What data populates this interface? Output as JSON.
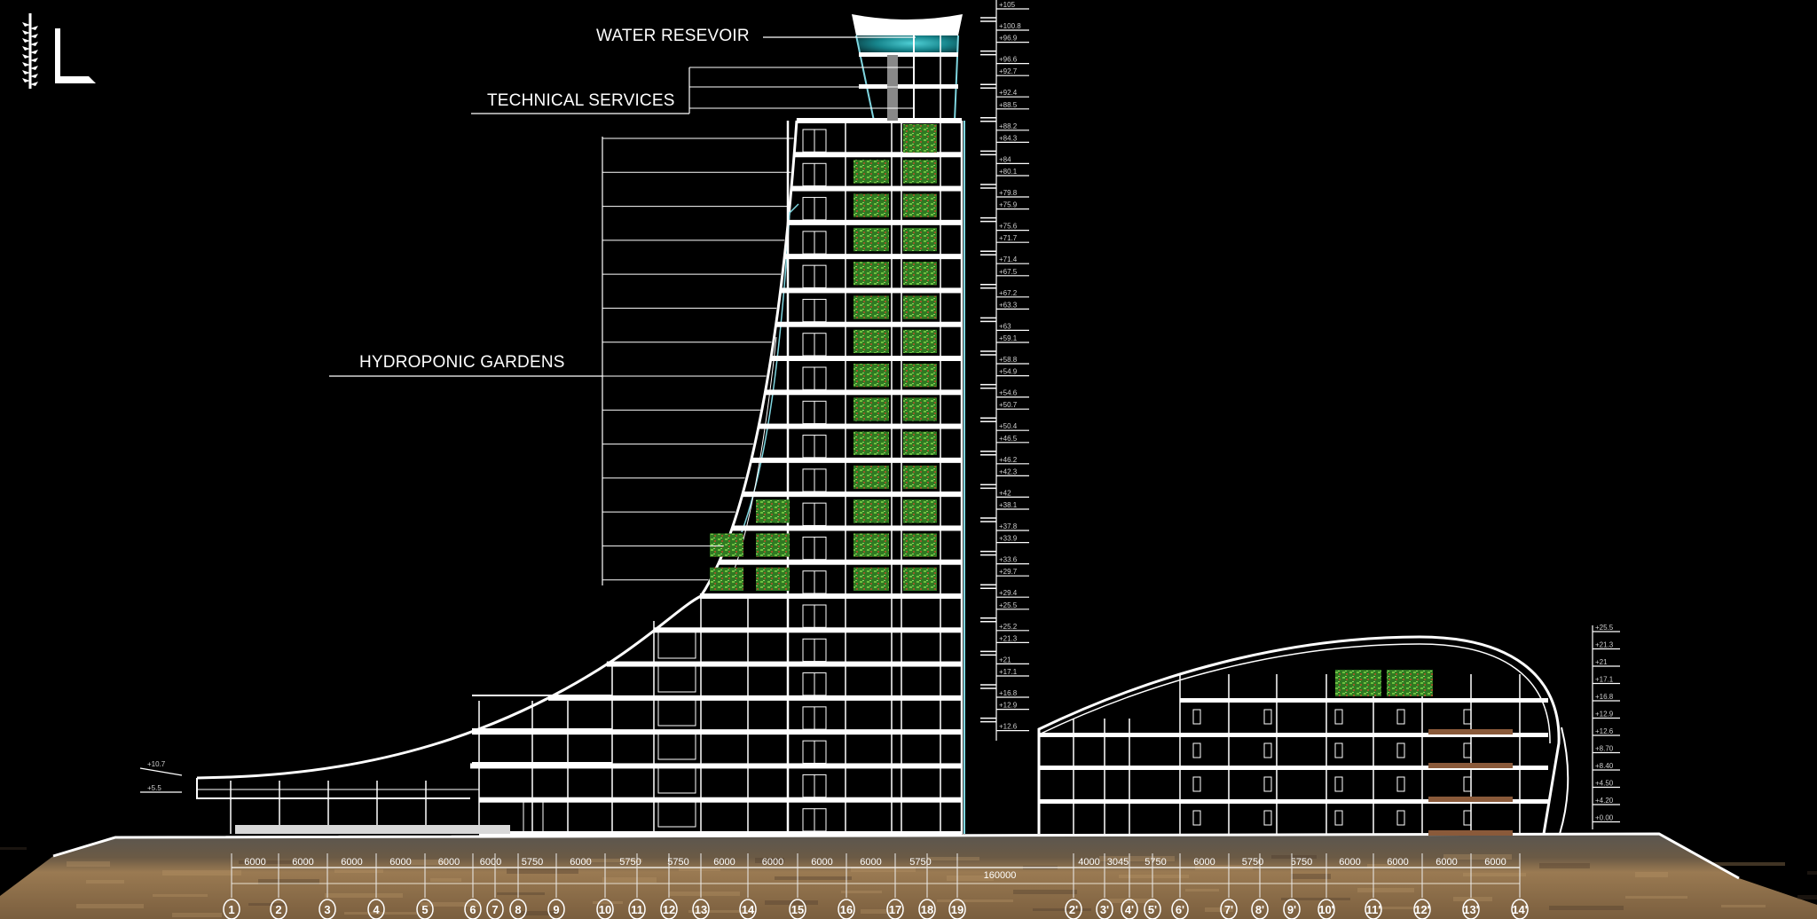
{
  "logo": {
    "letter": "L",
    "icon": "plant-sprig-logo"
  },
  "annotations": {
    "water_reservoir": "WATER RESEVOIR",
    "technical_services": "TECHNICAL SERVICES",
    "hydroponic_gardens": "HYDROPONIC GARDENS"
  },
  "tower_levels": [
    "+105",
    "+100.8",
    "+96.9",
    "+96.6",
    "+92.7",
    "+92.4",
    "+88.5",
    "+88.2",
    "+84.3",
    "+84",
    "+80.1",
    "+79.8",
    "+75.9",
    "+75.6",
    "+71.7",
    "+71.4",
    "+67.5",
    "+67.2",
    "+63.3",
    "+63",
    "+59.1",
    "+58.8",
    "+54.9",
    "+54.6",
    "+50.7",
    "+50.4",
    "+46.5",
    "+46.2",
    "+42.3",
    "+42",
    "+38.1",
    "+37.8",
    "+33.9",
    "+33.6",
    "+29.7",
    "+29.4",
    "+25.5",
    "+25.2",
    "+21.3",
    "+21",
    "+17.1",
    "+16.8",
    "+12.9",
    "+12.6"
  ],
  "right_levels": [
    "+25.5",
    "+21.3",
    "+21",
    "+17.1",
    "+16.8",
    "+12.9",
    "+12.6",
    "+8.70",
    "+8.40",
    "+4.50",
    "+4.20",
    "+0.00"
  ],
  "left_levels": [
    "+10.7",
    "+5.5"
  ],
  "dimensions_left": [
    "6000",
    "6000",
    "6000",
    "6000",
    "6000",
    "6000",
    "5750",
    "6000",
    "5750",
    "5750",
    "6000",
    "6000",
    "6000",
    "6000",
    "5750"
  ],
  "dimensions_right": [
    "4000",
    "3045",
    "5750",
    "6000",
    "5750",
    "5750",
    "6000",
    "6000",
    "6000",
    "6000"
  ],
  "overall_dimension": "160000",
  "grid_left": [
    "1",
    "2",
    "3",
    "4",
    "5",
    "6",
    "7",
    "8",
    "9",
    "10",
    "11",
    "12",
    "13",
    "14",
    "15",
    "16",
    "17",
    "18",
    "19"
  ],
  "grid_right": [
    "2'",
    "3'",
    "4'",
    "5'",
    "6'",
    "7'",
    "8'",
    "9'",
    "10'",
    "11'",
    "12'",
    "13'",
    "14'"
  ],
  "colors": {
    "background": "#000000",
    "linework": "#ffffff",
    "facade": "#7fd6e0",
    "reservoir": "#1f9ea6",
    "garden": "#3e9a2c",
    "soil": "#8a6a45"
  }
}
